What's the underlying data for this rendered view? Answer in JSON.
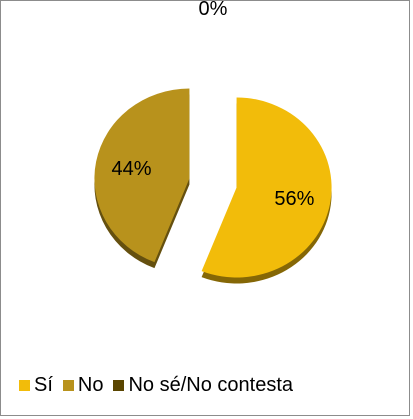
{
  "chart_data": {
    "type": "pie",
    "categories": [
      "Sí",
      "No",
      "No sé/No contesta"
    ],
    "values": [
      56,
      44,
      0
    ],
    "data_labels": [
      "56%",
      "44%",
      "0%"
    ],
    "colors": [
      "#f2bc0a",
      "#b8921c",
      "#5a4500"
    ],
    "start_angle_deg": 0,
    "direction": "clockwise",
    "style": "3d-exploded",
    "legend_position": "bottom"
  }
}
